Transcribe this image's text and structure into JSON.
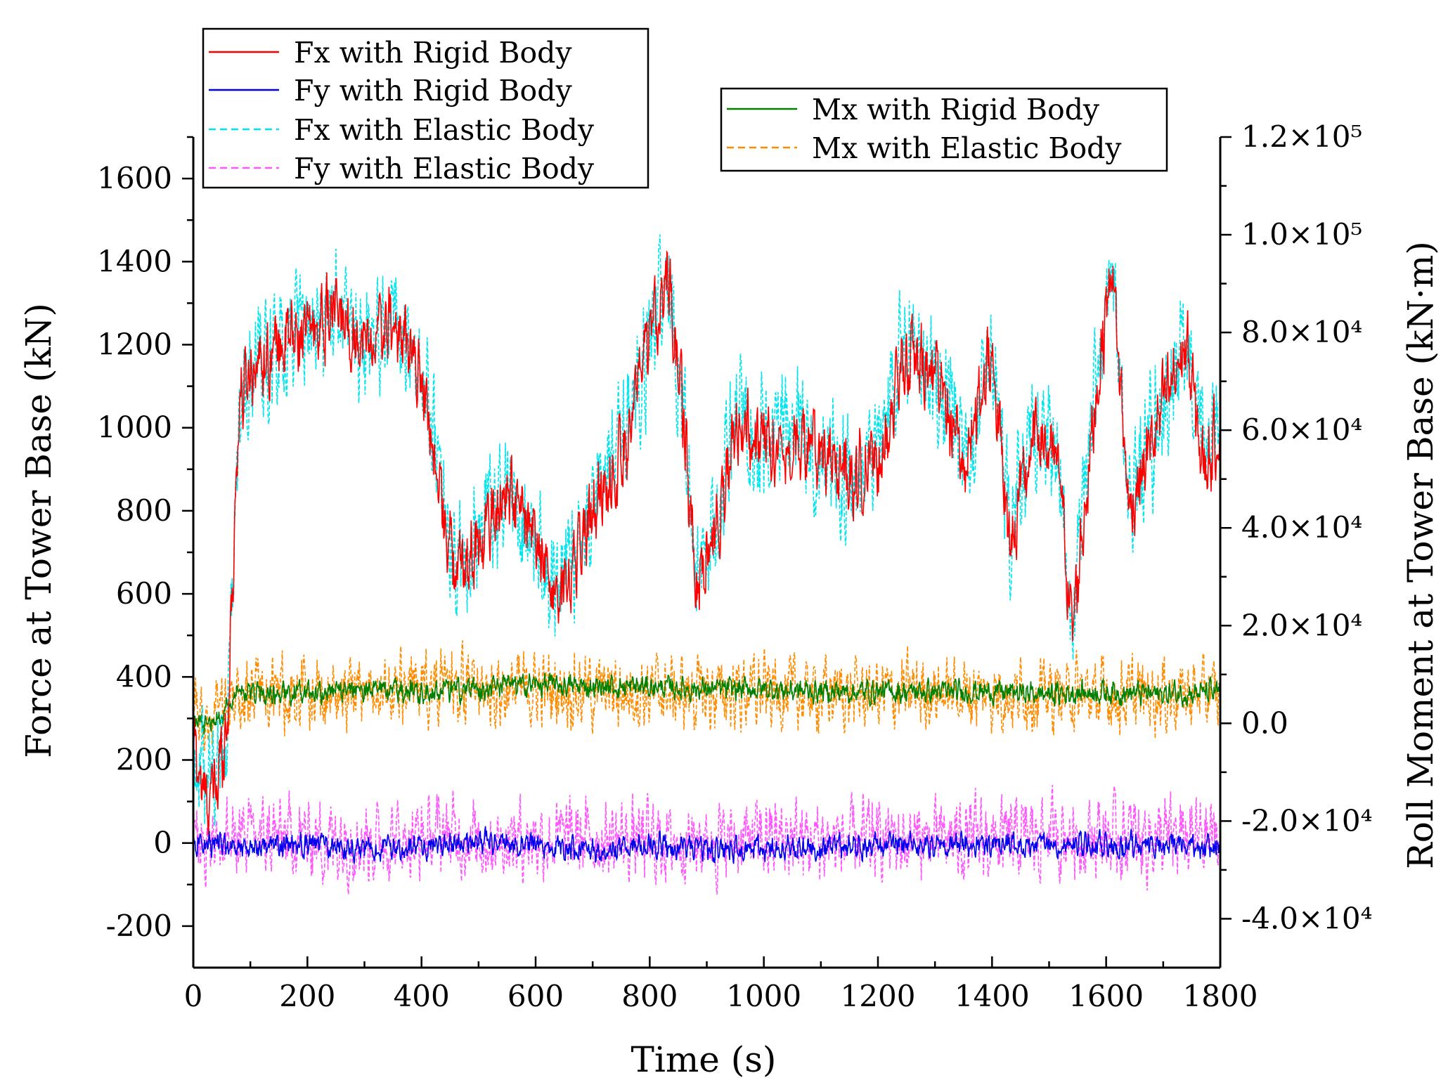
{
  "chart_data": {
    "type": "line",
    "xlabel": "Time (s)",
    "ylabel": "Force at Tower Base (kN)",
    "y2label": "Roll Moment at Tower Base (kN·m)",
    "xlim": [
      0,
      1800
    ],
    "ylim": [
      -300,
      1700
    ],
    "y2lim": [
      -50000,
      120000
    ],
    "x_ticks": [
      "0",
      "200",
      "400",
      "600",
      "800",
      "1000",
      "1200",
      "1400",
      "1600",
      "1800"
    ],
    "y_ticks": [
      "-200",
      "0",
      "200",
      "400",
      "600",
      "800",
      "1000",
      "1200",
      "1400",
      "1600"
    ],
    "y2_ticks": [
      "-4.0×10⁴",
      "-2.0×10⁴",
      "0.0",
      "2.0×10⁴",
      "4.0×10⁴",
      "6.0×10⁴",
      "8.0×10⁴",
      "1.0×10⁵",
      "1.2×10⁵"
    ],
    "legend_left": [
      "Fx with Rigid Body",
      "Fy with Rigid Body",
      "Fx with Elastic Body",
      "Fy with Elastic Body"
    ],
    "legend_right": [
      "Mx with Rigid Body",
      "Mx with Elastic Body"
    ],
    "series": [
      {
        "name": "Fx with Rigid Body",
        "axis": "left",
        "color": "#ff0000",
        "style": "solid",
        "noise": 70,
        "x": [
          0,
          20,
          40,
          60,
          80,
          100,
          150,
          200,
          250,
          300,
          350,
          400,
          430,
          460,
          500,
          550,
          600,
          640,
          700,
          750,
          800,
          830,
          860,
          880,
          920,
          950,
          1000,
          1050,
          1100,
          1150,
          1200,
          1250,
          1300,
          1350,
          1400,
          1430,
          1480,
          1520,
          1540,
          1580,
          1610,
          1640,
          1700,
          1740,
          1770,
          1800
        ],
        "y": [
          250,
          100,
          130,
          300,
          1050,
          1150,
          1200,
          1230,
          1280,
          1200,
          1250,
          1130,
          850,
          650,
          720,
          850,
          720,
          580,
          800,
          930,
          1200,
          1380,
          1000,
          620,
          780,
          1000,
          960,
          980,
          930,
          880,
          920,
          1180,
          1120,
          900,
          1200,
          720,
          1000,
          880,
          500,
          1050,
          1400,
          800,
          1050,
          1200,
          900,
          1000
        ]
      },
      {
        "name": "Fy with Rigid Body",
        "axis": "left",
        "color": "#0000ee",
        "style": "solid",
        "noise": 22,
        "x": [
          0,
          100,
          200,
          300,
          400,
          500,
          600,
          700,
          800,
          900,
          1000,
          1100,
          1200,
          1300,
          1400,
          1500,
          1600,
          1700,
          1800
        ],
        "y": [
          0,
          -10,
          0,
          -15,
          -10,
          5,
          -5,
          -20,
          0,
          -20,
          -10,
          -10,
          -5,
          -5,
          -5,
          0,
          -5,
          -5,
          -10
        ]
      },
      {
        "name": "Fx with Elastic Body",
        "axis": "left",
        "color": "#00e5ee",
        "style": "dashed",
        "noise": 110,
        "x": [
          0,
          20,
          40,
          60,
          80,
          100,
          150,
          200,
          250,
          300,
          350,
          400,
          430,
          460,
          500,
          550,
          600,
          640,
          700,
          750,
          800,
          830,
          860,
          880,
          920,
          950,
          1000,
          1050,
          1100,
          1150,
          1200,
          1250,
          1300,
          1350,
          1400,
          1430,
          1480,
          1520,
          1540,
          1580,
          1610,
          1640,
          1700,
          1740,
          1770,
          1800
        ],
        "y": [
          250,
          110,
          150,
          320,
          1000,
          1120,
          1180,
          1230,
          1290,
          1210,
          1260,
          1150,
          880,
          680,
          740,
          860,
          740,
          600,
          820,
          950,
          1220,
          1400,
          1020,
          640,
          800,
          1010,
          980,
          990,
          950,
          890,
          940,
          1190,
          1130,
          920,
          1210,
          740,
          1010,
          890,
          520,
          1060,
          1410,
          820,
          1060,
          1210,
          910,
          1010
        ]
      },
      {
        "name": "Fy with Elastic Body",
        "axis": "left",
        "color": "#ff55ff",
        "style": "dashed",
        "noise": 70,
        "x": [
          0,
          100,
          200,
          300,
          400,
          440,
          480,
          520,
          600,
          700,
          800,
          900,
          1000,
          1100,
          1200,
          1300,
          1400,
          1500,
          1600,
          1700,
          1800
        ],
        "y": [
          10,
          15,
          10,
          5,
          10,
          25,
          10,
          5,
          15,
          10,
          5,
          5,
          10,
          5,
          5,
          10,
          5,
          20,
          15,
          10,
          15
        ]
      },
      {
        "name": "Mx with Rigid Body",
        "axis": "right",
        "color": "#008000",
        "style": "solid",
        "noise": 1800,
        "x": [
          0,
          30,
          60,
          80,
          100,
          200,
          300,
          400,
          500,
          600,
          700,
          800,
          900,
          1000,
          1100,
          1200,
          1300,
          1400,
          1500,
          1600,
          1700,
          1800
        ],
        "y": [
          0,
          0,
          3000,
          6500,
          6000,
          6500,
          7000,
          6500,
          7000,
          8000,
          7500,
          7500,
          7000,
          7000,
          6500,
          6500,
          6500,
          6500,
          6000,
          6500,
          6000,
          6500
        ]
      },
      {
        "name": "Mx with Elastic Body",
        "axis": "right",
        "color": "#ff8c00",
        "style": "dashed",
        "noise": 5500,
        "x": [
          0,
          30,
          60,
          80,
          100,
          200,
          300,
          400,
          450,
          480,
          500,
          600,
          700,
          800,
          900,
          1000,
          1100,
          1200,
          1300,
          1400,
          1500,
          1600,
          1700,
          1800
        ],
        "y": [
          0,
          0,
          3000,
          6000,
          6000,
          6500,
          6500,
          7000,
          8000,
          7500,
          6500,
          7000,
          6500,
          6500,
          6000,
          6500,
          6000,
          6000,
          6500,
          6000,
          6000,
          5500,
          6000,
          6000
        ]
      }
    ]
  }
}
